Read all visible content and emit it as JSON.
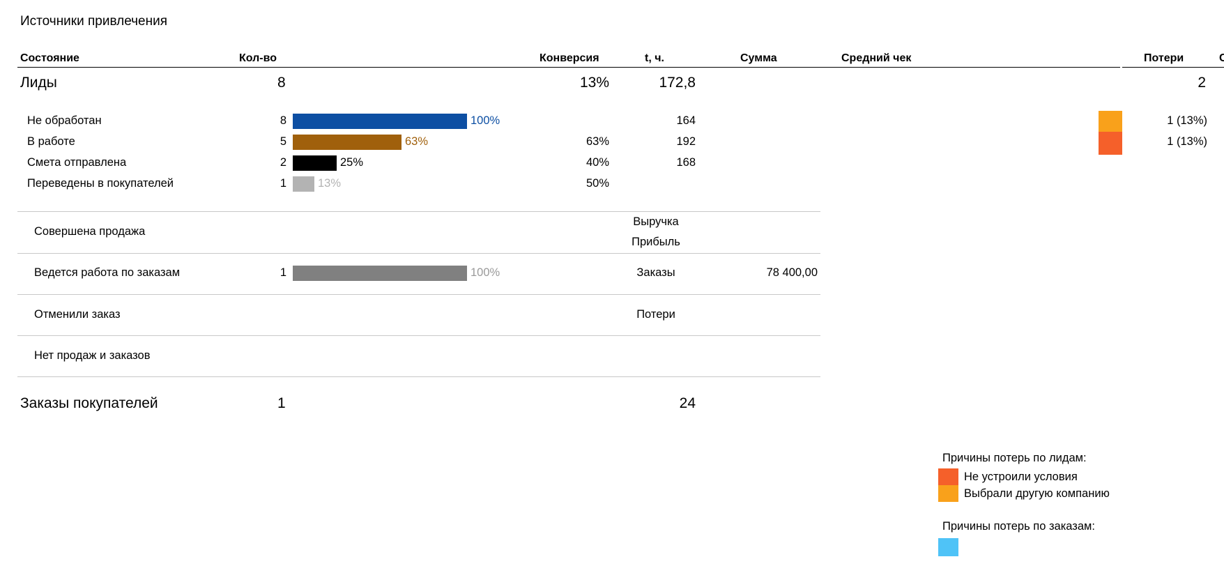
{
  "title": "Источники привлечения",
  "headers": {
    "state": "Состояние",
    "count": "Кол-во",
    "conversion": "Конверсия",
    "time": "t, ч.",
    "sum": "Сумма",
    "avg_check": "Средний чек",
    "losses": "Потери",
    "cut": "С"
  },
  "leads": {
    "label": "Лиды",
    "count": "8",
    "conversion": "13%",
    "time": "172,8",
    "losses": "2",
    "rows": [
      {
        "label": "Не обработан",
        "count": "8",
        "pct": "100%",
        "fraction": 1.0,
        "color": "#0d4fa3",
        "pct_color": "#0d4fa3",
        "conversion": "",
        "time": "164",
        "loss": "1 (13%)",
        "loss_color": "#f9a11b"
      },
      {
        "label": "В работе",
        "count": "5",
        "pct": "63%",
        "fraction": 0.625,
        "color": "#a0600c",
        "pct_color": "#a0600c",
        "conversion": "63%",
        "time": "192",
        "loss": "1 (13%)",
        "loss_color": "#f5602a"
      },
      {
        "label": "Смета отправлена",
        "count": "2",
        "pct": "25%",
        "fraction": 0.25,
        "color": "#000000",
        "pct_color": "#000000",
        "conversion": "40%",
        "time": "168",
        "loss": "",
        "loss_color": ""
      },
      {
        "label": "Переведены в покупателей",
        "count": "1",
        "pct": "13%",
        "fraction": 0.125,
        "color": "#b3b3b3",
        "pct_color": "#b3b3b3",
        "conversion": "50%",
        "time": "",
        "loss": "",
        "loss_color": ""
      }
    ]
  },
  "sections": {
    "sold": {
      "label": "Совершена продажа",
      "metric1": "Выручка",
      "metric2": "Прибыль"
    },
    "in_work": {
      "label": "Ведется работа по заказам",
      "count": "1",
      "pct": "100%",
      "fraction": 1.0,
      "color": "#808080",
      "pct_color": "#9a9a9a",
      "metric": "Заказы",
      "sum": "78 400,00"
    },
    "cancelled": {
      "label": "Отменили заказ",
      "metric": "Потери"
    },
    "none": {
      "label": "Нет продаж и заказов"
    }
  },
  "orders": {
    "label": "Заказы покупателей",
    "count": "1",
    "time": "24"
  },
  "legend": {
    "lead_title": "Причины потерь по лидам:",
    "lead_items": [
      {
        "label": "Не устроили условия",
        "color": "#f5602a"
      },
      {
        "label": "Выбрали другую компанию",
        "color": "#f9a11b"
      }
    ],
    "order_title": "Причины потерь по заказам:",
    "order_color": "#4fc3f7"
  }
}
